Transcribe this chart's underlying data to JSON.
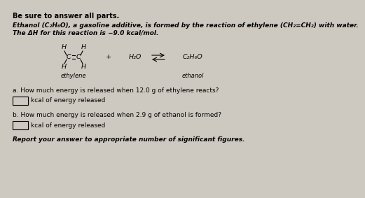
{
  "bg_color": "#cdc9c0",
  "title_line": "Be sure to answer all parts.",
  "intro_line1": "Ethanol (C₂H₆O), a gasoline additive, is formed by the reaction of ethylene (CH₂=CH₂) with water.",
  "intro_line2": "The ΔH for this reaction is −9.0 kcal/mol.",
  "question_a": "a. How much energy is released when 12.0 g of ethylene reacts?",
  "answer_a_label": "kcal of energy released",
  "question_b": "b. How much energy is released when 2.9 g of ethanol is formed?",
  "answer_b_label": "kcal of energy released",
  "footer": "Report your answer to appropriate number of significant figures.",
  "ethylene_label": "ethylene",
  "ethanol_label": "ethanol",
  "plus_sign": "+",
  "water": "H₂O",
  "product": "C₂H₆O",
  "fs_title": 7.0,
  "fs_body": 6.5,
  "fs_chem": 6.8
}
